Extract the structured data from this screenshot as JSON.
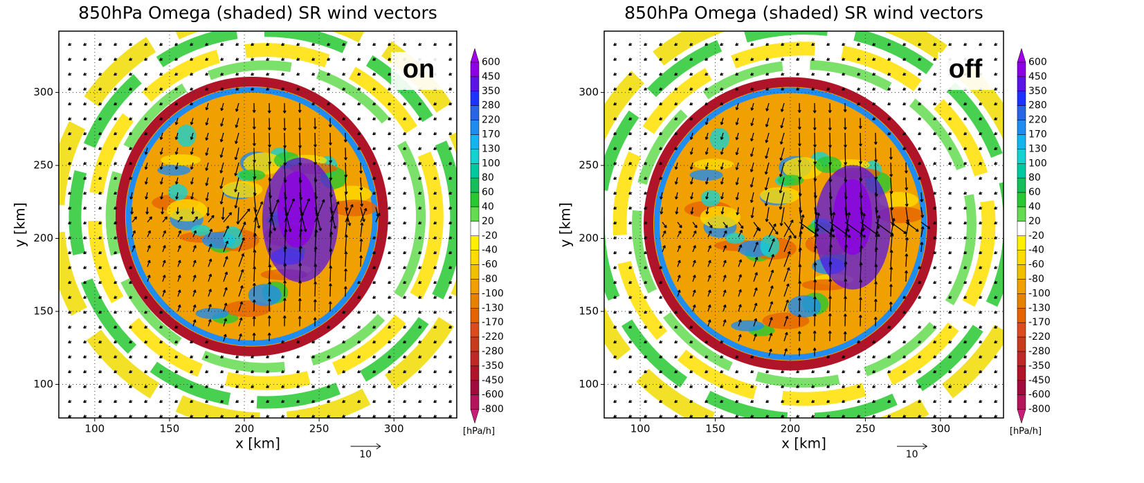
{
  "chart_data": [
    {
      "type": "contour",
      "title": "850hPa Omega (shaded) SR wind vectors",
      "xlabel": "x [km]",
      "ylabel": "y [km]",
      "annotation": "on",
      "reference_vector": "10",
      "xlim": [
        76,
        342
      ],
      "ylim": [
        77,
        342
      ],
      "xticks": [
        100,
        150,
        200,
        250,
        300
      ],
      "yticks": [
        100,
        150,
        200,
        250,
        300
      ],
      "grid": true,
      "colorbar": {
        "label": "[hPa/h]",
        "levels": [
          600,
          450,
          350,
          280,
          220,
          170,
          130,
          100,
          80,
          60,
          40,
          20,
          -20,
          -40,
          -60,
          -80,
          -100,
          -130,
          -170,
          -220,
          -280,
          -350,
          -450,
          -600,
          -800
        ],
        "colors": [
          "#8c00e6",
          "#5a14e6",
          "#1e32ff",
          "#2864e6",
          "#1e8cf0",
          "#14b4f0",
          "#14d2d2",
          "#00c8a0",
          "#14be5a",
          "#28c832",
          "#64dc50",
          "#ffffff",
          "#fff000",
          "#ffdc00",
          "#f0c000",
          "#f0a000",
          "#e68200",
          "#e66400",
          "#dc4b1e",
          "#c83c1e",
          "#c02828",
          "#b01428",
          "#a00a3c",
          "#b4145a"
        ],
        "extend_colors": [
          "#a000e6",
          "#c81e78"
        ]
      }
    },
    {
      "type": "contour",
      "title": "850hPa Omega (shaded) SR wind vectors",
      "xlabel": "x [km]",
      "ylabel": "y [km]",
      "annotation": "off",
      "reference_vector": "10",
      "xlim": [
        76,
        342
      ],
      "ylim": [
        77,
        342
      ],
      "xticks": [
        100,
        150,
        200,
        250,
        300
      ],
      "yticks": [
        100,
        150,
        200,
        250,
        300
      ],
      "grid": true,
      "colorbar": {
        "label": "[hPa/h]",
        "levels": [
          600,
          450,
          350,
          280,
          220,
          170,
          130,
          100,
          80,
          60,
          40,
          20,
          -20,
          -40,
          -60,
          -80,
          -100,
          -130,
          -170,
          -220,
          -280,
          -350,
          -450,
          -600,
          -800
        ],
        "colors": [
          "#8c00e6",
          "#5a14e6",
          "#1e32ff",
          "#2864e6",
          "#1e8cf0",
          "#14b4f0",
          "#14d2d2",
          "#00c8a0",
          "#14be5a",
          "#28c832",
          "#64dc50",
          "#ffffff",
          "#fff000",
          "#ffdc00",
          "#f0c000",
          "#f0a000",
          "#e68200",
          "#e66400",
          "#dc4b1e",
          "#c83c1e",
          "#c02828",
          "#b01428",
          "#a00a3c",
          "#b4145a"
        ],
        "extend_colors": [
          "#a000e6",
          "#c81e78"
        ]
      }
    }
  ]
}
